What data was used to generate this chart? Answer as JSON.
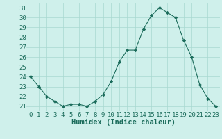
{
  "x": [
    0,
    1,
    2,
    3,
    4,
    5,
    6,
    7,
    8,
    9,
    10,
    11,
    12,
    13,
    14,
    15,
    16,
    17,
    18,
    19,
    20,
    21,
    22,
    23
  ],
  "y": [
    24.0,
    23.0,
    22.0,
    21.5,
    21.0,
    21.2,
    21.2,
    21.0,
    21.5,
    22.2,
    23.5,
    25.5,
    26.7,
    26.7,
    28.8,
    30.2,
    31.0,
    30.5,
    30.0,
    27.7,
    26.0,
    23.2,
    21.8,
    21.0
  ],
  "line_color": "#1a6b5a",
  "marker": "D",
  "marker_size": 2.2,
  "bg_color": "#cff0eb",
  "grid_color": "#a8d8d0",
  "xlabel": "Humidex (Indice chaleur)",
  "xlim": [
    -0.5,
    23.5
  ],
  "ylim": [
    20.5,
    31.5
  ],
  "yticks": [
    21,
    22,
    23,
    24,
    25,
    26,
    27,
    28,
    29,
    30,
    31
  ],
  "xticks": [
    0,
    1,
    2,
    3,
    4,
    5,
    6,
    7,
    8,
    9,
    10,
    11,
    12,
    13,
    14,
    15,
    16,
    17,
    18,
    19,
    20,
    21,
    22,
    23
  ],
  "tick_color": "#1a6b5a",
  "label_fontsize": 7.5,
  "tick_fontsize": 6.5
}
